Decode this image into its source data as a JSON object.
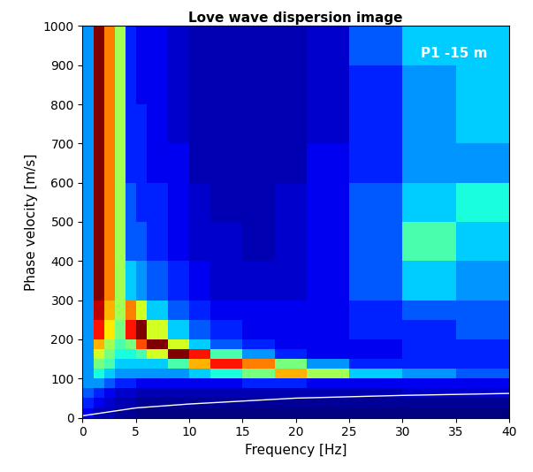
{
  "chart_data": {
    "type": "heatmap",
    "title": "Love wave dispersion image",
    "x_label": "Frequency [Hz]",
    "y_label": "Phase velocity [m/s]",
    "annotations": [
      "P1 -15 m"
    ],
    "color": "jet",
    "xlim": [
      0,
      40
    ],
    "ylim": [
      0,
      1000
    ],
    "xticks": [
      0,
      5,
      10,
      15,
      20,
      25,
      30,
      35,
      40
    ],
    "yticks": [
      0,
      100,
      200,
      300,
      400,
      500,
      600,
      700,
      800,
      900,
      1000
    ],
    "frequency_edges": [
      0,
      1,
      2,
      3,
      4,
      5,
      6,
      8,
      10,
      12,
      15,
      18,
      21,
      25,
      30,
      35,
      40
    ],
    "velocity_edges": [
      0,
      25,
      50,
      75,
      100,
      125,
      150,
      175,
      200,
      250,
      300,
      400,
      500,
      600,
      700,
      800,
      900,
      1000
    ],
    "cells": [
      [
        0.15,
        0.1,
        0.1,
        0.08,
        0.08,
        0.06,
        0.06,
        0.06,
        0.06,
        0.06,
        0.06,
        0.06,
        0.06,
        0.06,
        0.06,
        0.06
      ],
      [
        0.2,
        0.15,
        0.12,
        0.1,
        0.1,
        0.08,
        0.08,
        0.08,
        0.08,
        0.08,
        0.08,
        0.08,
        0.08,
        0.08,
        0.08,
        0.08
      ],
      [
        0.25,
        0.2,
        0.15,
        0.12,
        0.12,
        0.1,
        0.1,
        0.1,
        0.1,
        0.1,
        0.1,
        0.1,
        0.1,
        0.1,
        0.12,
        0.12
      ],
      [
        0.3,
        0.3,
        0.25,
        0.2,
        0.2,
        0.15,
        0.15,
        0.15,
        0.15,
        0.15,
        0.2,
        0.2,
        0.15,
        0.15,
        0.15,
        0.15
      ],
      [
        0.3,
        0.4,
        0.35,
        0.3,
        0.3,
        0.3,
        0.3,
        0.3,
        0.35,
        0.4,
        0.5,
        0.7,
        0.55,
        0.35,
        0.3,
        0.25
      ],
      [
        0.3,
        0.5,
        0.45,
        0.35,
        0.35,
        0.35,
        0.35,
        0.45,
        0.7,
        0.85,
        0.75,
        0.5,
        0.3,
        0.2,
        0.2,
        0.2
      ],
      [
        0.3,
        0.6,
        0.5,
        0.4,
        0.4,
        0.45,
        0.6,
        0.95,
        0.85,
        0.45,
        0.3,
        0.2,
        0.15,
        0.15,
        0.2,
        0.2
      ],
      [
        0.3,
        0.7,
        0.55,
        0.45,
        0.5,
        0.8,
        0.95,
        0.6,
        0.35,
        0.25,
        0.2,
        0.15,
        0.15,
        0.15,
        0.2,
        0.2
      ],
      [
        0.3,
        0.85,
        0.65,
        0.5,
        0.85,
        0.95,
        0.6,
        0.35,
        0.25,
        0.2,
        0.15,
        0.15,
        0.15,
        0.2,
        0.2,
        0.25
      ],
      [
        0.3,
        0.9,
        0.7,
        0.55,
        0.75,
        0.6,
        0.35,
        0.25,
        0.2,
        0.15,
        0.15,
        0.15,
        0.15,
        0.2,
        0.25,
        0.25
      ],
      [
        0.3,
        0.95,
        0.75,
        0.55,
        0.35,
        0.3,
        0.25,
        0.2,
        0.15,
        0.12,
        0.12,
        0.12,
        0.15,
        0.25,
        0.35,
        0.3
      ],
      [
        0.3,
        0.95,
        0.75,
        0.55,
        0.25,
        0.25,
        0.2,
        0.15,
        0.12,
        0.12,
        0.1,
        0.12,
        0.15,
        0.25,
        0.45,
        0.35
      ],
      [
        0.3,
        0.95,
        0.75,
        0.55,
        0.25,
        0.2,
        0.2,
        0.15,
        0.12,
        0.1,
        0.1,
        0.12,
        0.15,
        0.25,
        0.35,
        0.4
      ],
      [
        0.3,
        0.95,
        0.75,
        0.55,
        0.2,
        0.2,
        0.15,
        0.15,
        0.1,
        0.1,
        0.1,
        0.1,
        0.15,
        0.2,
        0.3,
        0.3
      ],
      [
        0.3,
        0.95,
        0.75,
        0.55,
        0.2,
        0.2,
        0.15,
        0.12,
        0.1,
        0.1,
        0.1,
        0.1,
        0.12,
        0.2,
        0.3,
        0.35
      ],
      [
        0.3,
        0.95,
        0.75,
        0.55,
        0.2,
        0.15,
        0.15,
        0.12,
        0.1,
        0.1,
        0.1,
        0.1,
        0.12,
        0.2,
        0.3,
        0.35
      ],
      [
        0.3,
        0.95,
        0.75,
        0.55,
        0.2,
        0.15,
        0.15,
        0.12,
        0.1,
        0.1,
        0.1,
        0.1,
        0.12,
        0.25,
        0.35,
        0.35
      ]
    ],
    "line": {
      "color": "white",
      "x": [
        0,
        5,
        10,
        20,
        30,
        40
      ],
      "values": [
        5,
        25,
        35,
        50,
        57,
        62
      ]
    }
  }
}
